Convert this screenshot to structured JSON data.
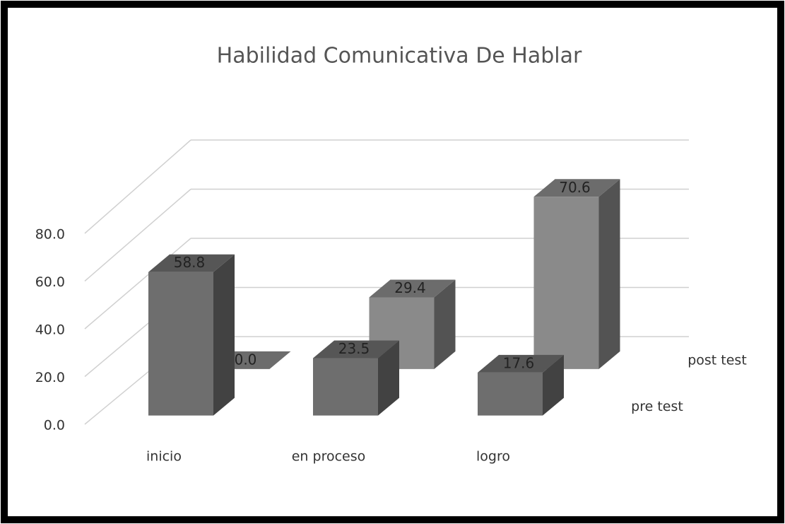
{
  "chart_data": {
    "type": "bar3d",
    "title": "Habilidad Comunicativa De Hablar",
    "categories": [
      "inicio",
      "en proceso",
      "logro"
    ],
    "series": [
      {
        "name": "pre test",
        "color": "#6e6e6e",
        "values": [
          58.8,
          23.5,
          17.6
        ],
        "value_labels": [
          "58.8",
          "23.5",
          "17.6"
        ]
      },
      {
        "name": "post test",
        "color": "#8a8a8a",
        "values": [
          0.0,
          29.4,
          70.6
        ],
        "value_labels": [
          "0.0",
          "29.4",
          "70.6"
        ]
      }
    ],
    "ylim": [
      0,
      80
    ],
    "yticks": [
      {
        "value": 0,
        "label": "0.0"
      },
      {
        "value": 20,
        "label": "20.0"
      },
      {
        "value": 40,
        "label": "40.0"
      },
      {
        "value": 60,
        "label": "60.0"
      },
      {
        "value": 80,
        "label": "80.0"
      }
    ],
    "grid": true
  }
}
